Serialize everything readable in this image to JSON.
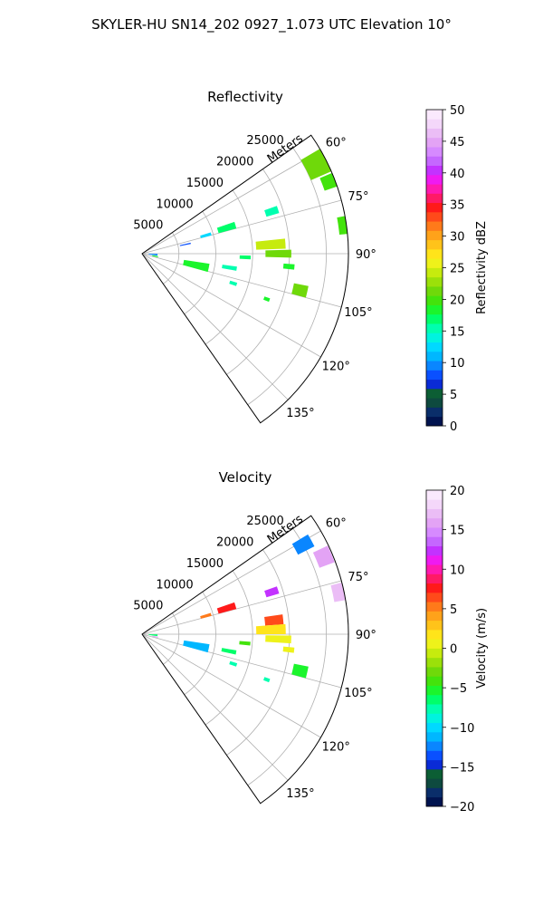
{
  "figure": {
    "suptitle": "SKYLER-HU  SN14_202  0927_1.073 UTC Elevation 10°"
  },
  "chart_data": [
    {
      "type": "polar-sector",
      "title": "Reflectivity",
      "r_axis_label": "Meters",
      "r_ticks": [
        5000,
        10000,
        15000,
        20000,
        25000
      ],
      "r_tick_labels": [
        "5000",
        "10000",
        "15000",
        "20000",
        "25000"
      ],
      "rlim": [
        0,
        28000
      ],
      "theta_range_deg": [
        55,
        145
      ],
      "theta_ticks_deg": [
        60,
        75,
        90,
        105,
        120,
        135
      ],
      "theta_tick_labels": [
        "60°",
        "75°",
        "90°",
        "105°",
        "120°",
        "135°"
      ],
      "grid": true,
      "colorbar": {
        "label": "Reflectivity dBZ",
        "range": [
          0,
          50
        ],
        "ticks": [
          0,
          5,
          10,
          15,
          20,
          25,
          30,
          35,
          40,
          45,
          50
        ],
        "tick_labels": [
          "0",
          "5",
          "10",
          "15",
          "20",
          "25",
          "30",
          "35",
          "40",
          "45",
          "50"
        ],
        "colors": [
          "#00134f",
          "#0a2e6a",
          "#0e4a3f",
          "#0c5e34",
          "#0a2bd6",
          "#0a50ff",
          "#0a86ff",
          "#00b7ff",
          "#00d9ff",
          "#00f3df",
          "#00ffaf",
          "#00ff6a",
          "#1bf52c",
          "#43e30c",
          "#6fd90a",
          "#9be00a",
          "#c6eb0e",
          "#eef21a",
          "#ffe41a",
          "#ffc31a",
          "#ffa21a",
          "#ff7a1a",
          "#ff4a1a",
          "#ff1a1a",
          "#ff1a66",
          "#ff1ab0",
          "#ef1af1",
          "#c332ff",
          "#c567ff",
          "#d68aff",
          "#e3a3f5",
          "#ebbdf6",
          "#f4d7fa",
          "#fae9fd"
        ]
      },
      "cells": [
        {
          "theta": 63,
          "r": 26500,
          "dr": 3000,
          "dtheta": 7,
          "value": 22
        },
        {
          "theta": 69,
          "r": 27200,
          "dr": 2000,
          "dtheta": 4,
          "value": 20
        },
        {
          "theta": 82,
          "r": 27500,
          "dr": 1200,
          "dtheta": 5,
          "value": 20
        },
        {
          "theta": 72,
          "r": 18500,
          "dr": 1800,
          "dtheta": 3,
          "value": 15
        },
        {
          "theta": 73,
          "r": 12000,
          "dr": 2500,
          "dtheta": 4,
          "value": 17
        },
        {
          "theta": 74,
          "r": 9000,
          "dr": 1500,
          "dtheta": 2.5,
          "value": 12
        },
        {
          "theta": 78,
          "r": 6000,
          "dr": 1500,
          "dtheta": 1.5,
          "value": 8
        },
        {
          "theta": 86,
          "r": 17500,
          "dr": 4000,
          "dtheta": 4,
          "value": 24
        },
        {
          "theta": 90,
          "r": 18500,
          "dr": 3500,
          "dtheta": 3,
          "value": 21
        },
        {
          "theta": 92,
          "r": 14000,
          "dr": 1500,
          "dtheta": 2,
          "value": 17
        },
        {
          "theta": 95,
          "r": 20000,
          "dr": 1500,
          "dtheta": 2,
          "value": 19
        },
        {
          "theta": 99,
          "r": 12000,
          "dr": 2000,
          "dtheta": 2.5,
          "value": 16
        },
        {
          "theta": 102,
          "r": 7500,
          "dr": 3500,
          "dtheta": 7,
          "value": 19
        },
        {
          "theta": 108,
          "r": 13000,
          "dr": 1000,
          "dtheta": 2,
          "value": 16
        },
        {
          "theta": 103,
          "r": 22000,
          "dr": 2000,
          "dtheta": 4,
          "value": 21
        },
        {
          "theta": 110,
          "r": 18000,
          "dr": 800,
          "dtheta": 1.5,
          "value": 18
        },
        {
          "theta": 94,
          "r": 1500,
          "dr": 1200,
          "dtheta": 6,
          "value": 9
        },
        {
          "theta": 101,
          "r": 1800,
          "dr": 800,
          "dtheta": 4,
          "value": 18
        }
      ]
    },
    {
      "type": "polar-sector",
      "title": "Velocity",
      "r_axis_label": "Meters",
      "r_ticks": [
        5000,
        10000,
        15000,
        20000,
        25000
      ],
      "r_tick_labels": [
        "5000",
        "10000",
        "15000",
        "20000",
        "25000"
      ],
      "rlim": [
        0,
        28000
      ],
      "theta_range_deg": [
        55,
        145
      ],
      "theta_ticks_deg": [
        60,
        75,
        90,
        105,
        120,
        135
      ],
      "theta_tick_labels": [
        "60°",
        "75°",
        "90°",
        "105°",
        "120°",
        "135°"
      ],
      "grid": true,
      "colorbar": {
        "label": "Velocity (m/s)",
        "range": [
          -20,
          20
        ],
        "ticks": [
          -20,
          -15,
          -10,
          -5,
          0,
          5,
          10,
          15,
          20
        ],
        "tick_labels": [
          "−20",
          "−15",
          "−10",
          "−5",
          "0",
          "5",
          "10",
          "15",
          "20"
        ],
        "colors": [
          "#00134f",
          "#0a2e6a",
          "#0e4a3f",
          "#0c5e34",
          "#0a2bd6",
          "#0a50ff",
          "#0a86ff",
          "#00b7ff",
          "#00d9ff",
          "#00f3df",
          "#00ffaf",
          "#00ff6a",
          "#1bf52c",
          "#43e30c",
          "#6fd90a",
          "#9be00a",
          "#c6eb0e",
          "#eef21a",
          "#ffe41a",
          "#ffc31a",
          "#ffa21a",
          "#ff7a1a",
          "#ff4a1a",
          "#ff1a1a",
          "#ff1a66",
          "#ff1ab0",
          "#ef1af1",
          "#c332ff",
          "#c567ff",
          "#d68aff",
          "#e3a3f5",
          "#ebbdf6",
          "#f4d7fa",
          "#fae9fd"
        ]
      },
      "cells": [
        {
          "theta": 61,
          "r": 25000,
          "dr": 2500,
          "dtheta": 4,
          "value": -12
        },
        {
          "theta": 67,
          "r": 26800,
          "dr": 2200,
          "dtheta": 5,
          "value": 16
        },
        {
          "theta": 78,
          "r": 27200,
          "dr": 1500,
          "dtheta": 5,
          "value": 17
        },
        {
          "theta": 72,
          "r": 18500,
          "dr": 1800,
          "dtheta": 3,
          "value": 12
        },
        {
          "theta": 73,
          "r": 12000,
          "dr": 2500,
          "dtheta": 4,
          "value": 8
        },
        {
          "theta": 74,
          "r": 9000,
          "dr": 1500,
          "dtheta": 2.5,
          "value": 5
        },
        {
          "theta": 84,
          "r": 18000,
          "dr": 2500,
          "dtheta": 4,
          "value": 7
        },
        {
          "theta": 88,
          "r": 17500,
          "dr": 4000,
          "dtheta": 4,
          "value": 2
        },
        {
          "theta": 92,
          "r": 18500,
          "dr": 3500,
          "dtheta": 3,
          "value": 1
        },
        {
          "theta": 95,
          "r": 14000,
          "dr": 1500,
          "dtheta": 2,
          "value": -4
        },
        {
          "theta": 96,
          "r": 20000,
          "dr": 1500,
          "dtheta": 2,
          "value": 0
        },
        {
          "theta": 101,
          "r": 12000,
          "dr": 2000,
          "dtheta": 2.5,
          "value": -6
        },
        {
          "theta": 102,
          "r": 7500,
          "dr": 3500,
          "dtheta": 7,
          "value": -11
        },
        {
          "theta": 108,
          "r": 13000,
          "dr": 1000,
          "dtheta": 2,
          "value": -8
        },
        {
          "theta": 103,
          "r": 22000,
          "dr": 2000,
          "dtheta": 4,
          "value": -5
        },
        {
          "theta": 110,
          "r": 18000,
          "dr": 800,
          "dtheta": 1.5,
          "value": -8
        },
        {
          "theta": 94,
          "r": 1500,
          "dr": 1200,
          "dtheta": 6,
          "value": -6
        },
        {
          "theta": 101,
          "r": 1800,
          "dr": 800,
          "dtheta": 4,
          "value": 16
        }
      ]
    }
  ]
}
